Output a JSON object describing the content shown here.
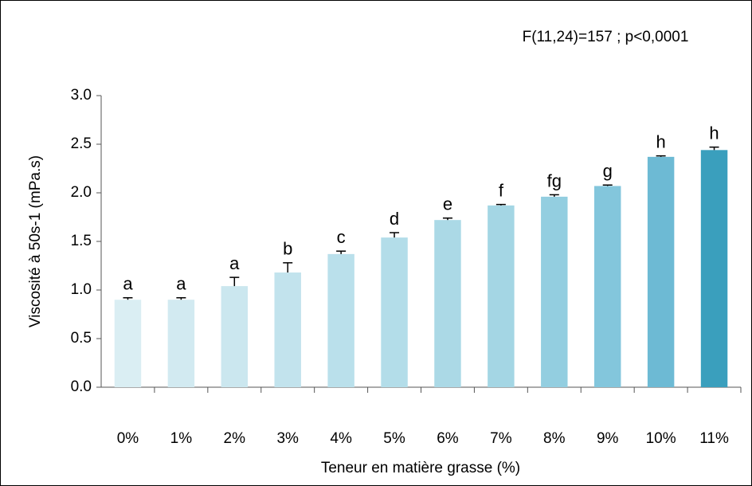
{
  "chart_data": {
    "type": "bar",
    "annotation": "F(11,24)=157 ; p<0,0001",
    "x_label": "Teneur en matière grasse (%)",
    "y_label": "Viscosité à 50s-1 (mPa.s)",
    "categories": [
      "0%",
      "1%",
      "2%",
      "3%",
      "4%",
      "5%",
      "6%",
      "7%",
      "8%",
      "9%",
      "10%",
      "11%"
    ],
    "values": [
      0.9,
      0.9,
      1.04,
      1.18,
      1.37,
      1.54,
      1.72,
      1.87,
      1.96,
      2.07,
      2.37,
      2.44
    ],
    "errors": [
      0.02,
      0.02,
      0.09,
      0.1,
      0.03,
      0.05,
      0.02,
      0.01,
      0.02,
      0.01,
      0.01,
      0.03
    ],
    "letters": [
      "a",
      "a",
      "a",
      "b",
      "c",
      "d",
      "e",
      "f",
      "fg",
      "g",
      "h",
      "h"
    ],
    "colors": [
      "#daeef3",
      "#d2eaf1",
      "#cbe7ef",
      "#c2e3ed",
      "#bae0eb",
      "#b3dde9",
      "#abd9e6",
      "#a4d6e4",
      "#93cee0",
      "#83c6dc",
      "#6dbad4",
      "#3a9fbd"
    ],
    "ylim": [
      0,
      3
    ],
    "yticks": [
      {
        "value": 0,
        "label": "0.0"
      },
      {
        "value": 0.5,
        "label": "0.5"
      },
      {
        "value": 1,
        "label": "1.0"
      },
      {
        "value": 1.5,
        "label": "1.5"
      },
      {
        "value": 2,
        "label": "2.0"
      },
      {
        "value": 2.5,
        "label": "2.5"
      },
      {
        "value": 3,
        "label": "3.0"
      }
    ],
    "grid": false
  }
}
